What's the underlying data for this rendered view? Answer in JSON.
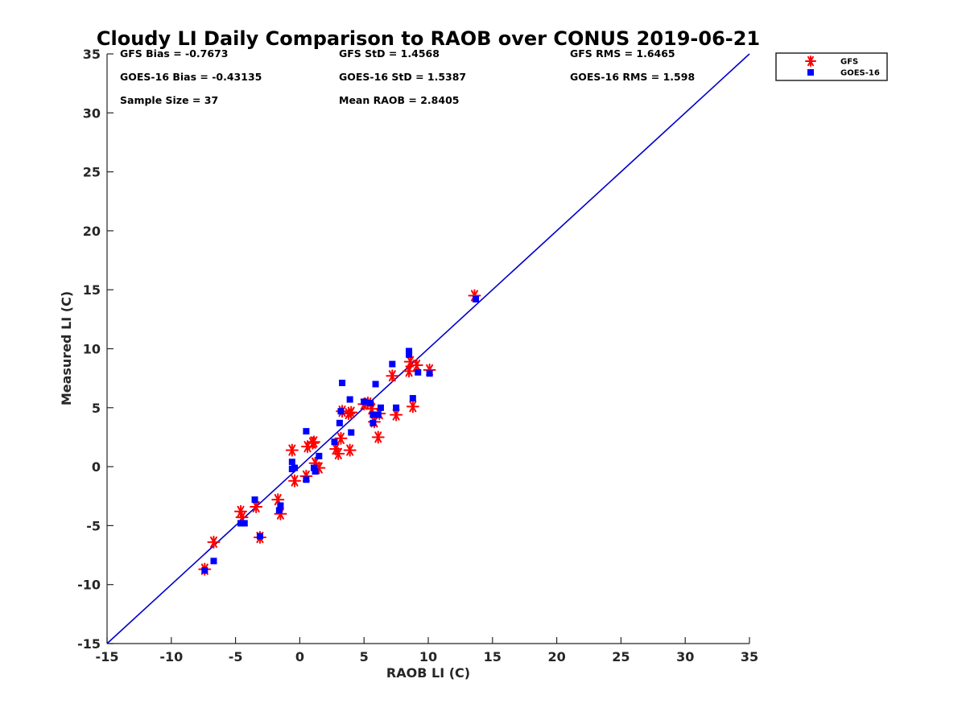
{
  "chart_data": {
    "type": "scatter",
    "title": "Cloudy LI Daily Comparison to RAOB over CONUS 2019-06-21",
    "xlabel": "RAOB LI (C)",
    "ylabel": "Measured LI (C)",
    "xlim": [
      -15,
      35
    ],
    "ylim": [
      -15,
      35
    ],
    "xticks": [
      "-15",
      "-10",
      "-5",
      "0",
      "5",
      "10",
      "15",
      "20",
      "25",
      "30",
      "35"
    ],
    "yticks": [
      "-15",
      "-10",
      "-5",
      "0",
      "5",
      "10",
      "15",
      "20",
      "25",
      "30",
      "35"
    ],
    "grid": false,
    "legend_position": "outside-top-right",
    "reference_line": {
      "from": [
        -15,
        -15
      ],
      "to": [
        35,
        35
      ],
      "color": "#0000cc"
    },
    "stats": [
      "GFS Bias = -0.7673",
      "GFS StD = 1.4568",
      "GFS RMS = 1.6465",
      "GOES-16 Bias = -0.43135",
      "GOES-16 StD = 1.5387",
      "GOES-16 RMS = 1.598",
      "Sample Size = 37",
      "Mean RAOB = 2.8405"
    ],
    "series": [
      {
        "name": "GFS",
        "marker": "asterisk",
        "color": "#ff0000",
        "points": [
          [
            13.6,
            14.5
          ],
          [
            -7.4,
            -8.7
          ],
          [
            -6.7,
            -6.4
          ],
          [
            -4.6,
            -3.8
          ],
          [
            -4.5,
            -4.3
          ],
          [
            -3.4,
            -3.4
          ],
          [
            -3.1,
            -6.0
          ],
          [
            -1.7,
            -2.8
          ],
          [
            -1.5,
            -4.0
          ],
          [
            -0.6,
            1.4
          ],
          [
            -0.4,
            -1.2
          ],
          [
            0.5,
            -0.8
          ],
          [
            0.6,
            1.7
          ],
          [
            1.0,
            2.0
          ],
          [
            1.2,
            0.3
          ],
          [
            1.5,
            -0.1
          ],
          [
            2.8,
            1.5
          ],
          [
            3.0,
            1.1
          ],
          [
            3.2,
            2.4
          ],
          [
            3.3,
            4.7
          ],
          [
            3.8,
            4.5
          ],
          [
            3.9,
            1.4
          ],
          [
            5.0,
            5.3
          ],
          [
            5.6,
            4.9
          ],
          [
            5.8,
            3.8
          ],
          [
            6.1,
            2.5
          ],
          [
            6.2,
            4.5
          ],
          [
            7.2,
            7.7
          ],
          [
            7.5,
            4.4
          ],
          [
            8.5,
            8.1
          ],
          [
            8.6,
            8.9
          ],
          [
            8.8,
            5.1
          ],
          [
            9.1,
            8.6
          ],
          [
            10.1,
            8.2
          ],
          [
            5.3,
            5.4
          ],
          [
            4.0,
            4.6
          ],
          [
            1.1,
            2.1
          ]
        ]
      },
      {
        "name": "GOES-16",
        "marker": "square",
        "color": "#0000ff",
        "points": [
          [
            13.7,
            14.2
          ],
          [
            -7.4,
            -8.8
          ],
          [
            -6.7,
            -8.0
          ],
          [
            -4.6,
            -4.8
          ],
          [
            -4.3,
            -4.8
          ],
          [
            -3.5,
            -2.8
          ],
          [
            -3.1,
            -5.9
          ],
          [
            -1.6,
            -3.7
          ],
          [
            -1.5,
            -3.3
          ],
          [
            -0.6,
            0.4
          ],
          [
            -0.6,
            -0.2
          ],
          [
            -0.4,
            -0.1
          ],
          [
            0.5,
            -1.1
          ],
          [
            0.5,
            3.0
          ],
          [
            1.1,
            -0.1
          ],
          [
            1.2,
            -0.4
          ],
          [
            1.5,
            0.9
          ],
          [
            2.7,
            2.1
          ],
          [
            3.1,
            3.7
          ],
          [
            3.2,
            4.7
          ],
          [
            3.3,
            7.1
          ],
          [
            3.9,
            5.7
          ],
          [
            4.0,
            2.9
          ],
          [
            5.0,
            5.5
          ],
          [
            5.5,
            5.4
          ],
          [
            5.7,
            4.4
          ],
          [
            5.7,
            3.7
          ],
          [
            5.9,
            7.0
          ],
          [
            6.1,
            4.4
          ],
          [
            6.3,
            5.0
          ],
          [
            7.2,
            8.7
          ],
          [
            7.5,
            5.0
          ],
          [
            8.5,
            9.8
          ],
          [
            8.5,
            9.5
          ],
          [
            8.8,
            5.8
          ],
          [
            9.2,
            8.0
          ],
          [
            10.1,
            7.9
          ]
        ]
      }
    ]
  }
}
